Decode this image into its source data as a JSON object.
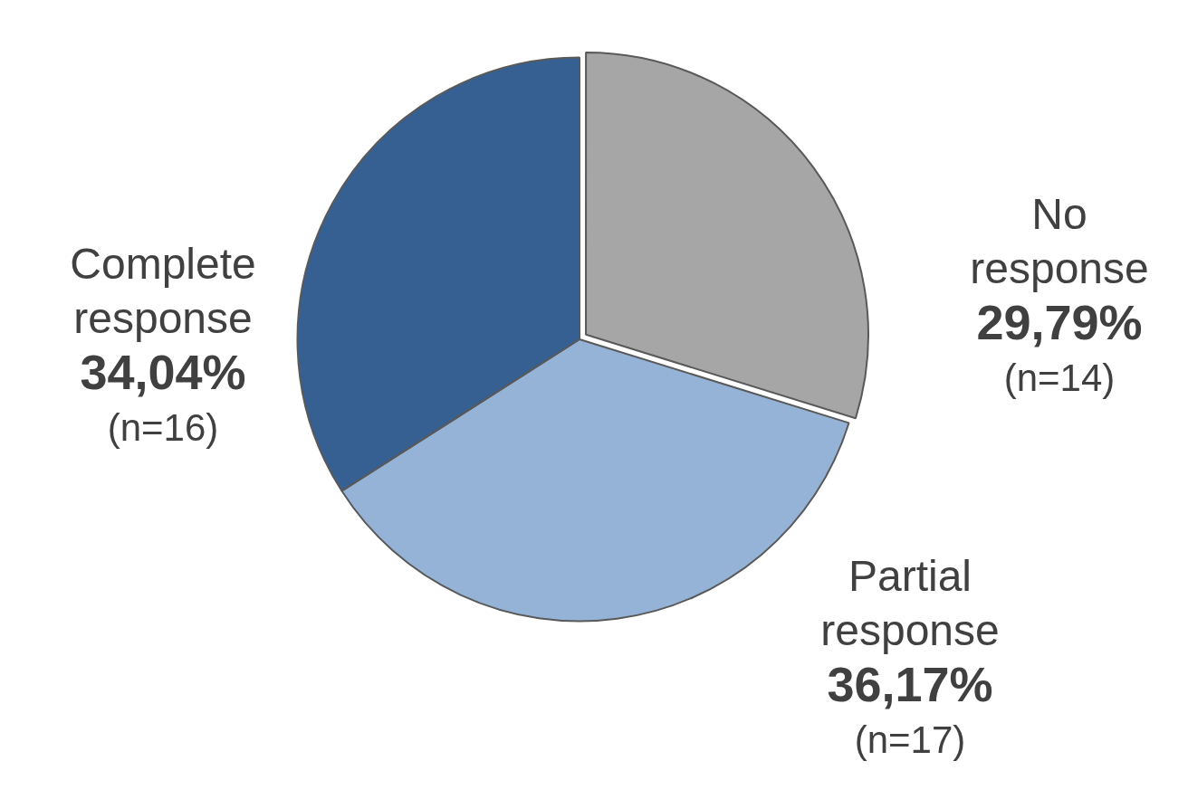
{
  "chart_data": {
    "type": "pie",
    "categories": [
      "No response",
      "Partial response",
      "Complete response"
    ],
    "values": [
      29.79,
      36.17,
      34.04
    ],
    "colors": [
      "#a6a6a6",
      "#95b3d7",
      "#366092"
    ],
    "value_labels": [
      "29,79%",
      "36,17%",
      "34,04%"
    ],
    "annotations": [
      "(n=14)",
      "(n=17)",
      "(n=16)"
    ],
    "legend": false
  }
}
